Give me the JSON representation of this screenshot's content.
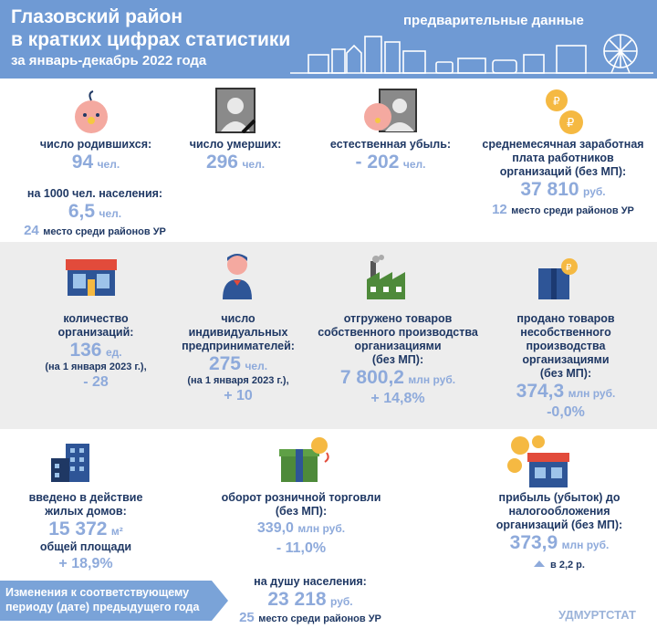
{
  "header": {
    "title_line1": "Глазовский район",
    "title_line2": "в кратких цифрах статистики",
    "period": "за январь-декабрь 2022 года",
    "preliminary": "предварительные данные"
  },
  "births": {
    "label": "число родившихся:",
    "value": "94",
    "unit": "чел.",
    "per1000_label": "на 1000 чел. населения:",
    "per1000_value": "6,5",
    "per1000_unit": "чел.",
    "rank_num": "24",
    "rank_text": "место среди районов УР"
  },
  "deaths": {
    "label": "число умерших:",
    "value": "296",
    "unit": "чел."
  },
  "natural_decrease": {
    "label": "естественная убыль:",
    "value": "- 202",
    "unit": "чел."
  },
  "salary": {
    "label_line1": "среднемесячная заработная",
    "label_line2": "плата работников",
    "label_line3": "организаций (без МП):",
    "value": "37 810",
    "unit": "руб.",
    "rank_num": "12",
    "rank_text": "место среди районов УР"
  },
  "organizations": {
    "label_line1": "количество",
    "label_line2": "организаций:",
    "value": "136",
    "unit": "ед.",
    "date": "(на 1 января 2023 г.),",
    "change": "- 28"
  },
  "entrepreneurs": {
    "label_line1": "число",
    "label_line2": "индивидуальных",
    "label_line3": "предпринимателей:",
    "value": "275",
    "unit": "чел.",
    "date": "(на 1 января 2023 г.),",
    "change": "+ 10"
  },
  "shipped": {
    "label_line1": "отгружено товаров",
    "label_line2": "собственного производства",
    "label_line3": "организациями",
    "label_line4": "(без МП):",
    "value": "7 800,2",
    "unit": "млн руб.",
    "change": "+ 14,8%"
  },
  "sold": {
    "label_line1": "продано товаров",
    "label_line2": "несобственного",
    "label_line3": "производства",
    "label_line4": "организациями",
    "label_line5": "(без МП):",
    "value": "374,3",
    "unit": "млн руб.",
    "change": "-0,0%"
  },
  "housing": {
    "label_line1": "введено в действие",
    "label_line2": "жилых домов:",
    "value": "15 372",
    "unit": "м²",
    "area_label": "общей площади",
    "change": "+ 18,9%"
  },
  "retail": {
    "label_line1": "оборот розничной торговли",
    "label_line2": "(без МП):",
    "value": "339,0",
    "unit": "млн руб.",
    "change": "- 11,0%",
    "per_capita_label": "на душу населения:",
    "per_capita_value": "23 218",
    "per_capita_unit": "руб.",
    "rank_num": "25",
    "rank_text": "место среди районов УР"
  },
  "profit": {
    "label_line1": "прибыль (убыток) до",
    "label_line2": "налогообложения",
    "label_line3": "организаций (без МП):",
    "value": "373,9",
    "unit": "млн руб.",
    "change": "в 2,2 р."
  },
  "legend": {
    "line1": "Изменения к соответствующему",
    "line2": "периоду (дате) предыдущего года"
  },
  "footer": {
    "source": "УДМУРТСТАТ"
  },
  "colors": {
    "header": "#6f9ad4",
    "value": "#8eaadb",
    "label": "#1f3864",
    "gray_band": "#ededed"
  }
}
